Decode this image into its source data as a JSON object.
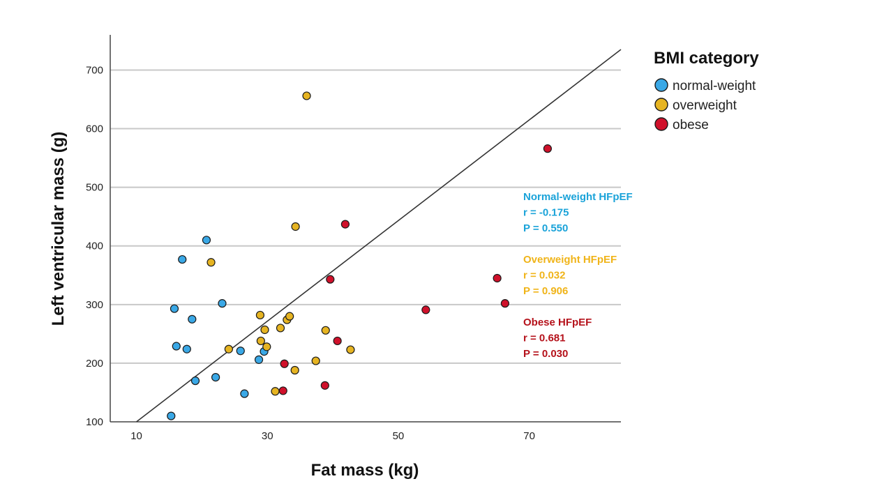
{
  "chart_data": {
    "type": "scatter",
    "xlabel": "Fat mass (kg)",
    "ylabel": "Left ventricular mass (g)",
    "xlim": [
      6,
      84
    ],
    "ylim": [
      100,
      760
    ],
    "xticks": [
      10,
      30,
      50,
      70
    ],
    "yticks": [
      100,
      200,
      300,
      400,
      500,
      600,
      700
    ],
    "grid": "horizontal",
    "legend": {
      "title": "BMI category",
      "position": "right",
      "entries": [
        {
          "label": "normal-weight",
          "color": "#3aa8e6"
        },
        {
          "label": "overweight",
          "color": "#e6b422"
        },
        {
          "label": "obese",
          "color": "#d0112b"
        }
      ]
    },
    "series": [
      {
        "name": "normal-weight",
        "color": "#3aa8e6",
        "points": [
          {
            "x": 15.3,
            "y": 110
          },
          {
            "x": 15.8,
            "y": 293
          },
          {
            "x": 16.1,
            "y": 229
          },
          {
            "x": 17.0,
            "y": 377
          },
          {
            "x": 17.7,
            "y": 224
          },
          {
            "x": 18.5,
            "y": 275
          },
          {
            "x": 19.0,
            "y": 170
          },
          {
            "x": 20.7,
            "y": 410
          },
          {
            "x": 22.1,
            "y": 176
          },
          {
            "x": 23.1,
            "y": 302
          },
          {
            "x": 25.9,
            "y": 221
          },
          {
            "x": 26.5,
            "y": 148
          },
          {
            "x": 28.7,
            "y": 206
          },
          {
            "x": 29.5,
            "y": 220
          }
        ]
      },
      {
        "name": "overweight",
        "color": "#e6b422",
        "points": [
          {
            "x": 21.4,
            "y": 372
          },
          {
            "x": 24.1,
            "y": 224
          },
          {
            "x": 28.9,
            "y": 282
          },
          {
            "x": 29.0,
            "y": 238
          },
          {
            "x": 29.6,
            "y": 257
          },
          {
            "x": 29.9,
            "y": 228
          },
          {
            "x": 31.2,
            "y": 152
          },
          {
            "x": 32.0,
            "y": 260
          },
          {
            "x": 33.0,
            "y": 274
          },
          {
            "x": 33.4,
            "y": 280
          },
          {
            "x": 34.2,
            "y": 188
          },
          {
            "x": 34.3,
            "y": 433
          },
          {
            "x": 36.0,
            "y": 656
          },
          {
            "x": 37.4,
            "y": 204
          },
          {
            "x": 38.9,
            "y": 256
          },
          {
            "x": 42.7,
            "y": 223
          }
        ]
      },
      {
        "name": "obese",
        "color": "#d0112b",
        "points": [
          {
            "x": 32.4,
            "y": 153
          },
          {
            "x": 32.6,
            "y": 199
          },
          {
            "x": 38.8,
            "y": 162
          },
          {
            "x": 39.6,
            "y": 343
          },
          {
            "x": 40.7,
            "y": 238
          },
          {
            "x": 41.9,
            "y": 437
          },
          {
            "x": 54.2,
            "y": 291
          },
          {
            "x": 65.1,
            "y": 345
          },
          {
            "x": 66.3,
            "y": 302
          },
          {
            "x": 72.8,
            "y": 566
          }
        ]
      }
    ],
    "fit_line": {
      "x1": 10.0,
      "y1": 100,
      "x2": 84,
      "y2": 735
    },
    "annotations": [
      {
        "lines": [
          "Normal-weight HFpEF",
          "r = -0.175",
          "P = 0.550"
        ],
        "color": "#1aa3d9"
      },
      {
        "lines": [
          "Overweight HFpEF",
          "r = 0.032",
          "P = 0.906"
        ],
        "color": "#f0b419"
      },
      {
        "lines": [
          "Obese HFpEF",
          "r = 0.681",
          "P = 0.030"
        ],
        "color": "#b5121b"
      }
    ]
  }
}
